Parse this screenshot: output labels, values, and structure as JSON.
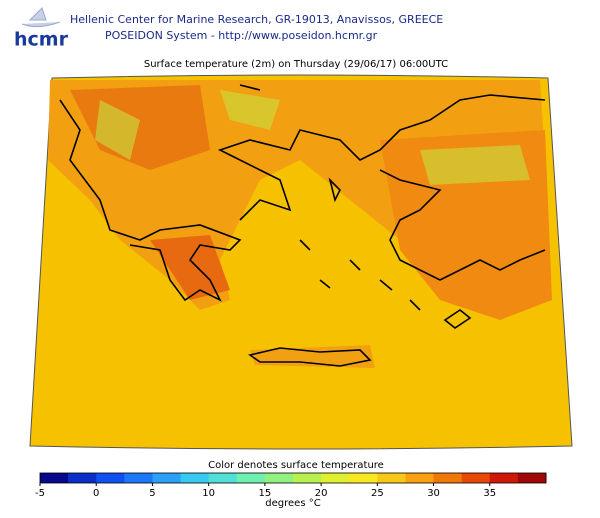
{
  "header": {
    "logo": "hcmr",
    "line1": "Hellenic Center for Marine Research, GR-19013, Anavissos, GREECE",
    "line2": "POSEIDON System - http://www.poseidon.hcmr.gr"
  },
  "map": {
    "title": "Surface temperature (2m) on Thursday (29/06/17) 06:00UTC"
  },
  "colorbar": {
    "caption": "Color denotes surface temperature",
    "label": "degrees °C",
    "lim": [
      -5,
      40
    ],
    "ticks": [
      -5,
      0,
      5,
      10,
      15,
      20,
      25,
      30,
      35
    ],
    "colors": [
      "#08088c",
      "#0a2fc8",
      "#1050f0",
      "#1c78f8",
      "#2aa0f8",
      "#38c8f0",
      "#50e0d8",
      "#70f0b0",
      "#90f080",
      "#b8f050",
      "#e0f030",
      "#f8e820",
      "#f8c818",
      "#f8a010",
      "#f07808",
      "#e84808",
      "#d01808",
      "#a00808"
    ]
  }
}
